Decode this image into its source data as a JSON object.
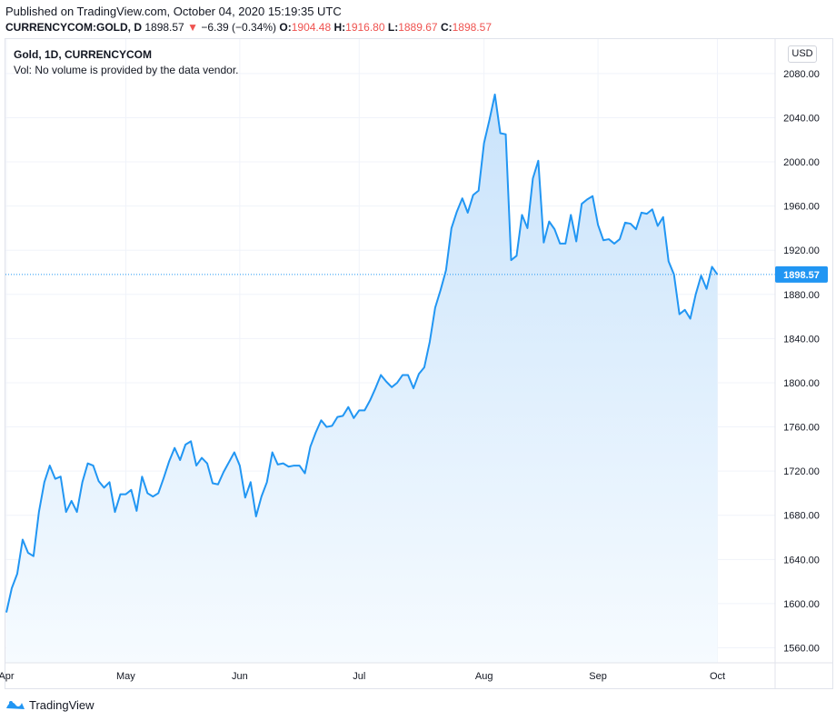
{
  "header": {
    "published": "Published on TradingView.com, October 04, 2020 15:19:35 UTC",
    "symbol": "CURRENCYCOM:GOLD, D",
    "last": "1898.57",
    "change_arrow": "▼",
    "change": "−6.39 (−0.34%)",
    "open_label": "O:",
    "open": "1904.48",
    "high_label": "H:",
    "high": "1916.80",
    "low_label": "L:",
    "low": "1889.67",
    "close_label": "C:",
    "close": "1898.57"
  },
  "legend": {
    "title": "Gold, 1D, CURRENCYCOM",
    "volume_note": "Vol: No volume is provided by the data vendor."
  },
  "currency_button": "USD",
  "footer": {
    "brand": "TradingView",
    "logo_icon": "tradingview-logo-icon"
  },
  "colors": {
    "line": "#2196f3",
    "fill_top": "#c9e3fb",
    "fill_bottom": "#f6fbff",
    "grid": "#f0f3fa",
    "negative": "#ef5350",
    "price_tag": "#2196f3"
  },
  "chart_data": {
    "type": "area",
    "title": "Gold, 1D, CURRENCYCOM",
    "xlabel": "",
    "ylabel": "USD",
    "ylim": [
      1545,
      2100
    ],
    "y_ticks": [
      1560,
      1600,
      1640,
      1680,
      1720,
      1760,
      1800,
      1840,
      1880,
      1920,
      1960,
      2000,
      2040,
      2080
    ],
    "x_tick_labels": [
      {
        "label": "Apr",
        "index": 0
      },
      {
        "label": "May",
        "index": 22
      },
      {
        "label": "Jun",
        "index": 43
      },
      {
        "label": "Jul",
        "index": 65
      },
      {
        "label": "Aug",
        "index": 88
      },
      {
        "label": "Sep",
        "index": 109
      },
      {
        "label": "Oct",
        "index": 131
      }
    ],
    "x_total_slots": 142,
    "last_value_label": "1898.57",
    "values": [
      1592,
      1614,
      1627,
      1658,
      1646,
      1643,
      1683,
      1710,
      1725,
      1713,
      1715,
      1683,
      1693,
      1683,
      1710,
      1727,
      1725,
      1711,
      1705,
      1710,
      1683,
      1699,
      1699,
      1703,
      1684,
      1715,
      1700,
      1697,
      1700,
      1714,
      1729,
      1741,
      1730,
      1744,
      1747,
      1725,
      1732,
      1727,
      1709,
      1708,
      1719,
      1728,
      1737,
      1725,
      1696,
      1710,
      1679,
      1697,
      1710,
      1737,
      1726,
      1727,
      1724,
      1725,
      1725,
      1718,
      1742,
      1755,
      1766,
      1760,
      1761,
      1769,
      1770,
      1778,
      1768,
      1775,
      1775,
      1784,
      1795,
      1807,
      1801,
      1796,
      1800,
      1807,
      1807,
      1795,
      1808,
      1814,
      1837,
      1868,
      1884,
      1902,
      1940,
      1955,
      1967,
      1954,
      1970,
      1974,
      2017,
      2038,
      2061,
      2026,
      2025,
      1911,
      1915,
      1952,
      1940,
      1985,
      2001,
      1927,
      1946,
      1939,
      1926,
      1926,
      1952,
      1928,
      1962,
      1966,
      1969,
      1943,
      1929,
      1930,
      1926,
      1930,
      1945,
      1944,
      1939,
      1954,
      1953,
      1957,
      1942,
      1950,
      1910,
      1898,
      1862,
      1866,
      1858,
      1880,
      1897,
      1885,
      1905,
      1898
    ]
  }
}
